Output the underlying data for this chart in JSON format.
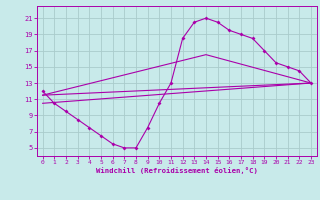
{
  "xlabel": "Windchill (Refroidissement éolien,°C)",
  "bg_color": "#c8eaea",
  "line_color": "#aa00aa",
  "grid_color": "#aacccc",
  "xlim": [
    -0.5,
    23.5
  ],
  "ylim": [
    4.0,
    22.5
  ],
  "xticks": [
    0,
    1,
    2,
    3,
    4,
    5,
    6,
    7,
    8,
    9,
    10,
    11,
    12,
    13,
    14,
    15,
    16,
    17,
    18,
    19,
    20,
    21,
    22,
    23
  ],
  "yticks": [
    5,
    7,
    9,
    11,
    13,
    15,
    17,
    19,
    21
  ],
  "line1_x": [
    0,
    1,
    2,
    3,
    4,
    5,
    6,
    7,
    8,
    9,
    10,
    11,
    12,
    13,
    14,
    15,
    16,
    17,
    18,
    19,
    20,
    21,
    22,
    23
  ],
  "line1_y": [
    12,
    10.5,
    9.5,
    8.5,
    7.5,
    6.5,
    5.5,
    5,
    5,
    7.5,
    10.5,
    13,
    18.5,
    20.5,
    21,
    20.5,
    19.5,
    19,
    18.5,
    17,
    15.5,
    15,
    14.5,
    13
  ],
  "line2_x": [
    0,
    23
  ],
  "line2_y": [
    11.5,
    13
  ],
  "line3_x": [
    0,
    23
  ],
  "line3_y": [
    10.5,
    13
  ],
  "line4_x": [
    0,
    14,
    23
  ],
  "line4_y": [
    11.5,
    16.5,
    13
  ]
}
